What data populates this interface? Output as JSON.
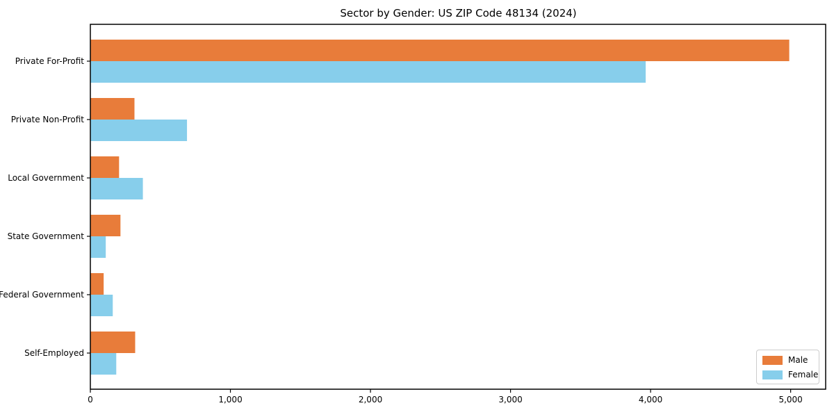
{
  "title": "Sector by Gender: US ZIP Code 48134 (2024)",
  "legend": {
    "position": "lower right",
    "items": [
      {
        "label": "Male",
        "color": "#e87c3a"
      },
      {
        "label": "Female",
        "color": "#87ceeb"
      }
    ]
  },
  "chart_data": {
    "type": "bar",
    "orientation": "horizontal",
    "title": "Sector by Gender: US ZIP Code 48134 (2024)",
    "categories": [
      "Private For-Profit",
      "Private Non-Profit",
      "Local Government",
      "State Government",
      "Federal Government",
      "Self-Employed"
    ],
    "series": [
      {
        "name": "Male",
        "color": "#e87c3a",
        "values": [
          4990,
          315,
          205,
          215,
          95,
          320
        ]
      },
      {
        "name": "Female",
        "color": "#87ceeb",
        "values": [
          3965,
          690,
          375,
          110,
          160,
          185
        ]
      }
    ],
    "xlabel": "",
    "ylabel": "",
    "xlim": [
      0,
      5250
    ],
    "xticks": [
      0,
      1000,
      2000,
      3000,
      4000,
      5000
    ],
    "xtick_labels": [
      "0",
      "1,000",
      "2,000",
      "3,000",
      "4,000",
      "5,000"
    ],
    "grid": false,
    "legend_position": "lower right",
    "spine_color": "#000000",
    "background_color": "#ffffff"
  }
}
